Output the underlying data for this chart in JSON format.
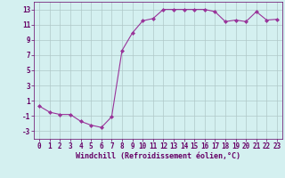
{
  "x": [
    0,
    1,
    2,
    3,
    4,
    5,
    6,
    7,
    8,
    9,
    10,
    11,
    12,
    13,
    14,
    15,
    16,
    17,
    18,
    19,
    20,
    21,
    22,
    23
  ],
  "y": [
    0.3,
    -0.5,
    -0.8,
    -0.8,
    -1.7,
    -2.2,
    -2.5,
    -1.1,
    7.6,
    9.9,
    11.5,
    11.8,
    13.0,
    13.0,
    13.0,
    13.0,
    13.0,
    12.7,
    11.4,
    11.6,
    11.4,
    12.7,
    11.6,
    11.7
  ],
  "line_color": "#993399",
  "marker": "D",
  "marker_size": 2.0,
  "bg_color": "#d4f0f0",
  "grid_color": "#b0c8c8",
  "xlabel": "Windchill (Refroidissement éolien,°C)",
  "ylabel": "",
  "xlim": [
    -0.5,
    23.5
  ],
  "ylim": [
    -4,
    14
  ],
  "yticks": [
    -3,
    -1,
    1,
    3,
    5,
    7,
    9,
    11,
    13
  ],
  "xticks": [
    0,
    1,
    2,
    3,
    4,
    5,
    6,
    7,
    8,
    9,
    10,
    11,
    12,
    13,
    14,
    15,
    16,
    17,
    18,
    19,
    20,
    21,
    22,
    23
  ],
  "line_color_hex": "#993399",
  "tick_color": "#660066",
  "xlabel_color": "#660066",
  "tick_fontsize": 5.5,
  "xlabel_fontsize": 6.0
}
